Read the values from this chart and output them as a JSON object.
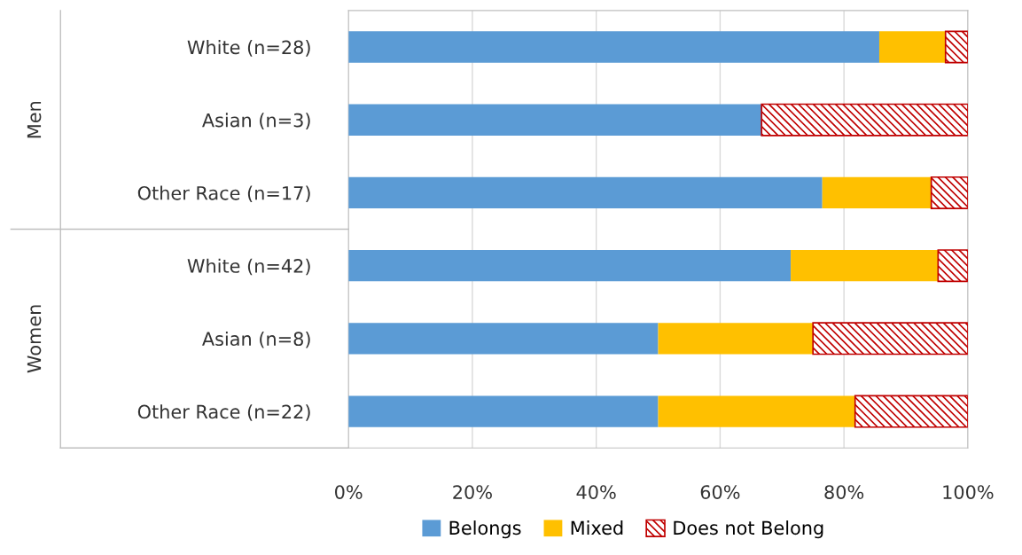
{
  "chart_data": {
    "type": "bar",
    "orientation": "horizontal",
    "stacked": true,
    "categories": [
      "White (n=28)",
      "Asian (n=3)",
      "Other Race (n=17)",
      "White (n=42)",
      "Asian (n=8)",
      "Other Race (n=22)"
    ],
    "series": [
      {
        "name": "Belongs",
        "color": "#5b9bd5",
        "values": [
          85.7,
          66.7,
          76.5,
          71.4,
          50,
          50
        ]
      },
      {
        "name": "Mixed",
        "color": "#ffc000",
        "values": [
          10.7,
          0,
          17.6,
          23.8,
          25,
          31.8
        ]
      },
      {
        "name": "Does not Belong",
        "color": "#c00000",
        "values": [
          3.6,
          33.3,
          5.9,
          4.8,
          25,
          18.2
        ]
      }
    ],
    "annotations": [
      "Men",
      "Women"
    ],
    "xlim": [
      0,
      100
    ],
    "xticks": [
      {
        "value": 0,
        "label": "0%"
      },
      {
        "value": 20,
        "label": "20%"
      },
      {
        "value": 40,
        "label": "40%"
      },
      {
        "value": 60,
        "label": "60%"
      },
      {
        "value": 80,
        "label": "80%"
      },
      {
        "value": 100,
        "label": "100%"
      }
    ],
    "grid": "x",
    "legend": "bottom"
  }
}
